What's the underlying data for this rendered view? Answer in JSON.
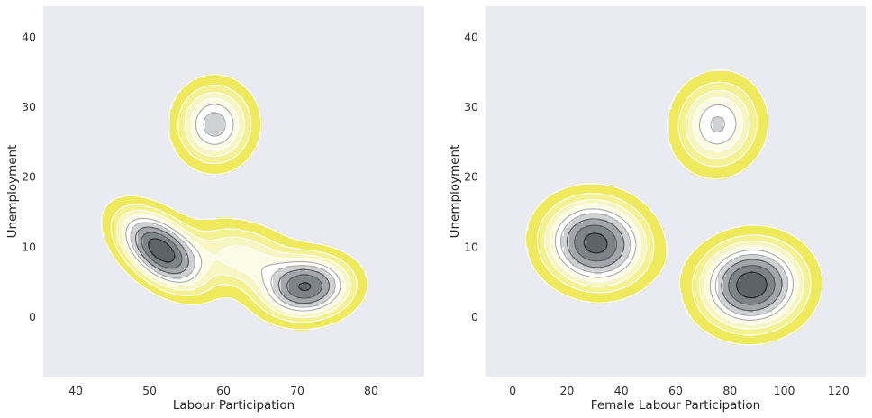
{
  "figure": {
    "background": "#ffffff",
    "axes_background": "#eaeaf2",
    "fill_colormap": [
      "#eeea5c",
      "#f3f192",
      "#f7f6c2",
      "#fcfce6",
      "#ffffff",
      "#cfd1d3",
      "#a3a7ab",
      "#7e8388",
      "#5d6468"
    ],
    "line_colors": [
      "#ffffff",
      "#aaaaaa",
      "#555555",
      "#222222"
    ]
  },
  "chart_data": [
    {
      "type": "kde-contour",
      "title": "",
      "xlabel": "Labour Participation",
      "ylabel": "Unemployment",
      "xlim": [
        35.6,
        87.2
      ],
      "ylim": [
        -8.6,
        44.4
      ],
      "xticks": [
        40,
        50,
        60,
        70,
        80
      ],
      "yticks": [
        0,
        10,
        20,
        30,
        40
      ],
      "grid": false,
      "legend": "none",
      "density_modes": [
        {
          "x": 51.5,
          "y": 9.5,
          "sx": 4.0,
          "sy": 2.4,
          "rot": -40,
          "weight": 1.0
        },
        {
          "x": 71.2,
          "y": 4.2,
          "sx": 3.6,
          "sy": 2.6,
          "rot": 5,
          "weight": 0.88
        },
        {
          "x": 58.8,
          "y": 27.5,
          "sx": 3.0,
          "sy": 3.4,
          "rot": 0,
          "weight": 0.55
        },
        {
          "x": 62.5,
          "y": 8.5,
          "sx": 4.5,
          "sy": 2.8,
          "rot": -15,
          "weight": 0.35
        }
      ]
    },
    {
      "type": "kde-contour",
      "title": "",
      "xlabel": "Female Labour Participation",
      "ylabel": "Unemployment",
      "xlim": [
        -10,
        130
      ],
      "ylim": [
        -8.6,
        44.4
      ],
      "xticks": [
        0,
        20,
        40,
        60,
        80,
        100,
        120
      ],
      "yticks": [
        0,
        10,
        20,
        30,
        40
      ],
      "grid": false,
      "legend": "none",
      "density_modes": [
        {
          "x": 30.5,
          "y": 10.5,
          "sx": 11.0,
          "sy": 3.6,
          "rot": -10,
          "weight": 0.95
        },
        {
          "x": 88.0,
          "y": 4.5,
          "sx": 11.0,
          "sy": 3.6,
          "rot": 5,
          "weight": 1.0
        },
        {
          "x": 75.5,
          "y": 27.5,
          "sx": 9.0,
          "sy": 3.8,
          "rot": -15,
          "weight": 0.5
        }
      ]
    }
  ]
}
